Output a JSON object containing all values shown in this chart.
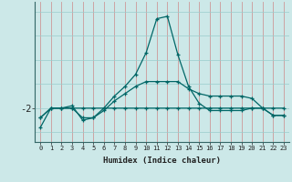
{
  "xlabel": "Humidex (Indice chaleur)",
  "bg_color": "#cce8e8",
  "line_color": "#006666",
  "grid_color_v": "#cc9999",
  "grid_color_h": "#99cccc",
  "x": [
    0,
    1,
    2,
    3,
    4,
    5,
    6,
    7,
    8,
    9,
    10,
    11,
    12,
    13,
    14,
    15,
    16,
    17,
    18,
    19,
    20,
    21,
    22,
    23
  ],
  "line1": [
    -2.4,
    -2.0,
    -2.0,
    -2.0,
    -2.0,
    -2.0,
    -2.0,
    -2.0,
    -2.0,
    -2.0,
    -2.0,
    -2.0,
    -2.0,
    -2.0,
    -2.0,
    -2.0,
    -2.0,
    -2.0,
    -2.0,
    -2.0,
    -2.0,
    -2.0,
    -2.0,
    -2.0
  ],
  "line2": [
    -2.2,
    -2.0,
    -2.0,
    -2.0,
    -2.2,
    -2.2,
    -2.05,
    -1.85,
    -1.7,
    -1.55,
    -1.45,
    -1.45,
    -1.45,
    -1.45,
    -1.6,
    -1.7,
    -1.75,
    -1.75,
    -1.75,
    -1.75,
    -1.8,
    -2.0,
    -2.15,
    -2.15
  ],
  "line3": [
    -2.2,
    -2.0,
    -2.0,
    -1.95,
    -2.25,
    -2.2,
    -2.0,
    -1.75,
    -1.55,
    -1.3,
    -0.85,
    -0.15,
    -0.1,
    -0.9,
    -1.55,
    -1.9,
    -2.05,
    -2.05,
    -2.05,
    -2.05,
    -2.0,
    -2.0,
    -2.15,
    -2.15
  ],
  "ytick_label": "-2",
  "ytick_val": -2.0,
  "xlim": [
    -0.5,
    23.5
  ],
  "ylim": [
    -2.7,
    0.2
  ]
}
